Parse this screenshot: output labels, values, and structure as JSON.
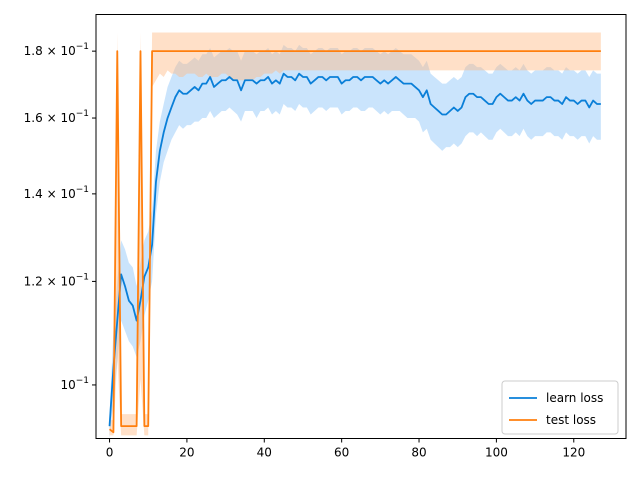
{
  "chart_data": {
    "type": "line",
    "title": "",
    "xlabel": "",
    "ylabel": "",
    "yscale": "log",
    "xlim": [
      -3.5,
      133.5
    ],
    "ylim": [
      0.091,
      0.192
    ],
    "grid": false,
    "legend_location": "lower-right",
    "x_ticks": [
      0,
      20,
      40,
      60,
      80,
      100,
      120
    ],
    "x_tick_labels": [
      "0",
      "20",
      "40",
      "60",
      "80",
      "100",
      "120"
    ],
    "y_ticks": [
      {
        "value": 0.1,
        "mantissa": "",
        "exponent": "−1"
      },
      {
        "value": 0.12,
        "mantissa": "1.2",
        "exponent": "−1"
      },
      {
        "value": 0.14,
        "mantissa": "1.4",
        "exponent": "−1"
      },
      {
        "value": 0.16,
        "mantissa": "1.6",
        "exponent": "−1"
      },
      {
        "value": 0.18,
        "mantissa": "1.8",
        "exponent": "−1"
      }
    ],
    "series": [
      {
        "name": "learn loss",
        "color": "#0a7fd8",
        "band_color": "#7bbcf7",
        "band_opacity": 0.4,
        "x": [
          0,
          1,
          2,
          3,
          4,
          5,
          6,
          7,
          8,
          9,
          10,
          11,
          12,
          13,
          14,
          15,
          16,
          17,
          18,
          19,
          20,
          21,
          22,
          23,
          24,
          25,
          26,
          27,
          28,
          29,
          30,
          31,
          32,
          33,
          34,
          35,
          36,
          37,
          38,
          39,
          40,
          41,
          42,
          43,
          44,
          45,
          46,
          47,
          48,
          49,
          50,
          51,
          52,
          53,
          54,
          55,
          56,
          57,
          58,
          59,
          60,
          61,
          62,
          63,
          64,
          65,
          66,
          67,
          68,
          69,
          70,
          71,
          72,
          73,
          74,
          75,
          76,
          77,
          78,
          79,
          80,
          81,
          82,
          83,
          84,
          85,
          86,
          87,
          88,
          89,
          90,
          91,
          92,
          93,
          94,
          95,
          96,
          97,
          98,
          99,
          100,
          101,
          102,
          103,
          104,
          105,
          106,
          107,
          108,
          109,
          110,
          111,
          112,
          113,
          114,
          115,
          116,
          117,
          118,
          119,
          120,
          121,
          122,
          123,
          124,
          125,
          126,
          127
        ],
        "y": [
          0.093,
          0.103,
          0.112,
          0.1215,
          0.119,
          0.116,
          0.115,
          0.112,
          0.116,
          0.121,
          0.123,
          0.128,
          0.143,
          0.151,
          0.156,
          0.16,
          0.163,
          0.166,
          0.168,
          0.167,
          0.167,
          0.168,
          0.169,
          0.168,
          0.17,
          0.17,
          0.172,
          0.169,
          0.17,
          0.171,
          0.171,
          0.172,
          0.171,
          0.171,
          0.168,
          0.171,
          0.171,
          0.171,
          0.17,
          0.171,
          0.171,
          0.172,
          0.17,
          0.171,
          0.17,
          0.173,
          0.172,
          0.172,
          0.171,
          0.173,
          0.172,
          0.172,
          0.17,
          0.171,
          0.172,
          0.172,
          0.171,
          0.172,
          0.172,
          0.172,
          0.17,
          0.171,
          0.171,
          0.172,
          0.172,
          0.171,
          0.172,
          0.172,
          0.172,
          0.171,
          0.17,
          0.171,
          0.17,
          0.171,
          0.172,
          0.171,
          0.17,
          0.17,
          0.17,
          0.169,
          0.168,
          0.166,
          0.168,
          0.164,
          0.163,
          0.162,
          0.161,
          0.161,
          0.162,
          0.163,
          0.162,
          0.163,
          0.166,
          0.167,
          0.167,
          0.166,
          0.166,
          0.165,
          0.164,
          0.164,
          0.166,
          0.167,
          0.166,
          0.165,
          0.165,
          0.166,
          0.165,
          0.167,
          0.165,
          0.164,
          0.165,
          0.165,
          0.165,
          0.166,
          0.166,
          0.165,
          0.165,
          0.164,
          0.166,
          0.165,
          0.165,
          0.164,
          0.165,
          0.165,
          0.163,
          0.165,
          0.164,
          0.164
        ],
        "lower": [
          0.091,
          0.097,
          0.104,
          0.112,
          0.11,
          0.108,
          0.107,
          0.105,
          0.108,
          0.113,
          0.116,
          0.12,
          0.135,
          0.143,
          0.148,
          0.151,
          0.154,
          0.156,
          0.158,
          0.157,
          0.158,
          0.158,
          0.159,
          0.159,
          0.16,
          0.16,
          0.162,
          0.16,
          0.161,
          0.162,
          0.162,
          0.163,
          0.162,
          0.161,
          0.159,
          0.162,
          0.162,
          0.162,
          0.16,
          0.162,
          0.162,
          0.163,
          0.161,
          0.162,
          0.161,
          0.164,
          0.163,
          0.163,
          0.162,
          0.164,
          0.163,
          0.163,
          0.161,
          0.162,
          0.163,
          0.163,
          0.162,
          0.163,
          0.163,
          0.163,
          0.161,
          0.162,
          0.162,
          0.163,
          0.163,
          0.162,
          0.162,
          0.163,
          0.163,
          0.162,
          0.161,
          0.162,
          0.161,
          0.162,
          0.162,
          0.162,
          0.161,
          0.16,
          0.16,
          0.16,
          0.159,
          0.156,
          0.157,
          0.154,
          0.153,
          0.152,
          0.151,
          0.152,
          0.152,
          0.153,
          0.152,
          0.153,
          0.155,
          0.156,
          0.156,
          0.155,
          0.156,
          0.155,
          0.154,
          0.154,
          0.156,
          0.157,
          0.156,
          0.155,
          0.155,
          0.156,
          0.155,
          0.157,
          0.155,
          0.154,
          0.155,
          0.155,
          0.155,
          0.156,
          0.156,
          0.155,
          0.155,
          0.154,
          0.156,
          0.155,
          0.155,
          0.154,
          0.155,
          0.155,
          0.153,
          0.155,
          0.154,
          0.154
        ],
        "upper": [
          0.095,
          0.11,
          0.12,
          0.129,
          0.127,
          0.124,
          0.123,
          0.119,
          0.124,
          0.129,
          0.131,
          0.136,
          0.151,
          0.159,
          0.164,
          0.169,
          0.172,
          0.175,
          0.177,
          0.176,
          0.176,
          0.177,
          0.178,
          0.177,
          0.179,
          0.179,
          0.181,
          0.178,
          0.179,
          0.18,
          0.18,
          0.181,
          0.18,
          0.18,
          0.177,
          0.18,
          0.18,
          0.18,
          0.179,
          0.18,
          0.18,
          0.181,
          0.179,
          0.18,
          0.179,
          0.182,
          0.181,
          0.181,
          0.18,
          0.182,
          0.181,
          0.181,
          0.179,
          0.18,
          0.181,
          0.181,
          0.18,
          0.181,
          0.181,
          0.181,
          0.179,
          0.18,
          0.18,
          0.181,
          0.181,
          0.18,
          0.181,
          0.181,
          0.181,
          0.18,
          0.179,
          0.18,
          0.179,
          0.18,
          0.181,
          0.18,
          0.179,
          0.179,
          0.179,
          0.178,
          0.177,
          0.175,
          0.177,
          0.173,
          0.172,
          0.171,
          0.17,
          0.17,
          0.171,
          0.172,
          0.171,
          0.172,
          0.175,
          0.176,
          0.176,
          0.175,
          0.175,
          0.174,
          0.173,
          0.173,
          0.175,
          0.176,
          0.175,
          0.174,
          0.174,
          0.175,
          0.174,
          0.176,
          0.174,
          0.173,
          0.174,
          0.174,
          0.174,
          0.175,
          0.175,
          0.174,
          0.174,
          0.173,
          0.175,
          0.174,
          0.174,
          0.173,
          0.174,
          0.174,
          0.172,
          0.174,
          0.173,
          0.173
        ]
      },
      {
        "name": "test loss",
        "color": "#ff7f0e",
        "band_color": "#ffbb85",
        "band_opacity": 0.45,
        "x": [
          0,
          1,
          2,
          3,
          4,
          5,
          6,
          7,
          8,
          9,
          10,
          11,
          12,
          13,
          14,
          15,
          16,
          17,
          18,
          19,
          20,
          21,
          22,
          23,
          24,
          25,
          26,
          27,
          28,
          29,
          30,
          31,
          32,
          33,
          34,
          35,
          36,
          37,
          38,
          39,
          40,
          41,
          42,
          43,
          44,
          45,
          46,
          47,
          48,
          49,
          50,
          51,
          52,
          53,
          54,
          55,
          56,
          57,
          58,
          59,
          60,
          61,
          62,
          63,
          64,
          65,
          66,
          67,
          68,
          69,
          70,
          71,
          72,
          73,
          74,
          75,
          76,
          77,
          78,
          79,
          80,
          81,
          82,
          83,
          84,
          85,
          86,
          87,
          88,
          89,
          90,
          91,
          92,
          93,
          94,
          95,
          96,
          97,
          98,
          99,
          100,
          101,
          102,
          103,
          104,
          105,
          106,
          107,
          108,
          109,
          110,
          111,
          112,
          113,
          114,
          115,
          116,
          117,
          118,
          119,
          120,
          121,
          122,
          123,
          124,
          125,
          126,
          127
        ],
        "y": [
          0.0925,
          0.092,
          0.18,
          0.093,
          0.093,
          0.093,
          0.093,
          0.093,
          0.18,
          0.093,
          0.093,
          0.18,
          0.18,
          0.18,
          0.18,
          0.18,
          0.18,
          0.18,
          0.18,
          0.18,
          0.18,
          0.18,
          0.18,
          0.18,
          0.18,
          0.18,
          0.18,
          0.18,
          0.18,
          0.18,
          0.18,
          0.18,
          0.18,
          0.18,
          0.18,
          0.18,
          0.18,
          0.18,
          0.18,
          0.18,
          0.18,
          0.18,
          0.18,
          0.18,
          0.18,
          0.18,
          0.18,
          0.18,
          0.18,
          0.18,
          0.18,
          0.18,
          0.18,
          0.18,
          0.18,
          0.18,
          0.18,
          0.18,
          0.18,
          0.18,
          0.18,
          0.18,
          0.18,
          0.18,
          0.18,
          0.18,
          0.18,
          0.18,
          0.18,
          0.18,
          0.18,
          0.18,
          0.18,
          0.18,
          0.18,
          0.18,
          0.18,
          0.18,
          0.18,
          0.18,
          0.18,
          0.18,
          0.18,
          0.18,
          0.18,
          0.18,
          0.18,
          0.18,
          0.18,
          0.18,
          0.18,
          0.18,
          0.18,
          0.18,
          0.18,
          0.18,
          0.18,
          0.18,
          0.18,
          0.18,
          0.18,
          0.18,
          0.18,
          0.18,
          0.18,
          0.18,
          0.18,
          0.18,
          0.18,
          0.18,
          0.18,
          0.18,
          0.18,
          0.18,
          0.18,
          0.18,
          0.18,
          0.18,
          0.18,
          0.18,
          0.18,
          0.18,
          0.18,
          0.18,
          0.18,
          0.18,
          0.18,
          0.18
        ],
        "lower": [
          0.0915,
          0.0915,
          0.105,
          0.0915,
          0.0915,
          0.0915,
          0.0915,
          0.0915,
          0.101,
          0.0915,
          0.0915,
          0.169,
          0.171,
          0.173,
          0.172,
          0.174,
          0.173,
          0.173,
          0.172,
          0.172,
          0.173,
          0.173,
          0.173,
          0.172,
          0.172,
          0.173,
          0.172,
          0.172,
          0.172,
          0.173,
          0.173,
          0.172,
          0.171,
          0.171,
          0.171,
          0.171,
          0.171,
          0.171,
          0.172,
          0.172,
          0.173,
          0.173,
          0.173,
          0.174,
          0.173,
          0.174,
          0.174,
          0.174,
          0.174,
          0.174,
          0.174,
          0.174,
          0.174,
          0.174,
          0.174,
          0.174,
          0.174,
          0.174,
          0.174,
          0.174,
          0.174,
          0.174,
          0.174,
          0.174,
          0.174,
          0.174,
          0.174,
          0.174,
          0.174,
          0.174,
          0.174,
          0.174,
          0.174,
          0.174,
          0.174,
          0.174,
          0.174,
          0.174,
          0.174,
          0.174,
          0.174,
          0.174,
          0.174,
          0.174,
          0.174,
          0.174,
          0.174,
          0.174,
          0.174,
          0.174,
          0.174,
          0.174,
          0.174,
          0.174,
          0.174,
          0.174,
          0.174,
          0.174,
          0.174,
          0.174,
          0.174,
          0.174,
          0.174,
          0.174,
          0.174,
          0.174,
          0.174,
          0.174,
          0.174,
          0.174,
          0.174,
          0.174,
          0.174,
          0.174,
          0.174,
          0.174,
          0.174,
          0.174,
          0.174,
          0.174,
          0.174,
          0.174,
          0.174,
          0.174,
          0.174,
          0.174,
          0.174,
          0.174
        ],
        "upper": [
          0.094,
          0.094,
          0.186,
          0.095,
          0.095,
          0.095,
          0.095,
          0.095,
          0.186,
          0.095,
          0.095,
          0.186,
          0.186,
          0.186,
          0.186,
          0.186,
          0.186,
          0.186,
          0.186,
          0.186,
          0.186,
          0.186,
          0.186,
          0.186,
          0.186,
          0.186,
          0.186,
          0.186,
          0.186,
          0.186,
          0.186,
          0.186,
          0.186,
          0.186,
          0.186,
          0.186,
          0.186,
          0.186,
          0.186,
          0.186,
          0.186,
          0.186,
          0.186,
          0.186,
          0.186,
          0.186,
          0.186,
          0.186,
          0.186,
          0.186,
          0.186,
          0.186,
          0.186,
          0.186,
          0.186,
          0.186,
          0.186,
          0.186,
          0.186,
          0.186,
          0.186,
          0.186,
          0.186,
          0.186,
          0.186,
          0.186,
          0.186,
          0.186,
          0.186,
          0.186,
          0.186,
          0.186,
          0.186,
          0.186,
          0.186,
          0.186,
          0.186,
          0.186,
          0.186,
          0.186,
          0.186,
          0.186,
          0.186,
          0.186,
          0.186,
          0.186,
          0.186,
          0.186,
          0.186,
          0.186,
          0.186,
          0.186,
          0.186,
          0.186,
          0.186,
          0.186,
          0.186,
          0.186,
          0.186,
          0.186,
          0.186,
          0.186,
          0.186,
          0.186,
          0.186,
          0.186,
          0.186,
          0.186,
          0.186,
          0.186,
          0.186,
          0.186,
          0.186,
          0.186,
          0.186,
          0.186,
          0.186,
          0.186,
          0.186,
          0.186,
          0.186,
          0.186,
          0.186,
          0.186,
          0.186,
          0.186,
          0.186,
          0.186
        ]
      }
    ]
  }
}
